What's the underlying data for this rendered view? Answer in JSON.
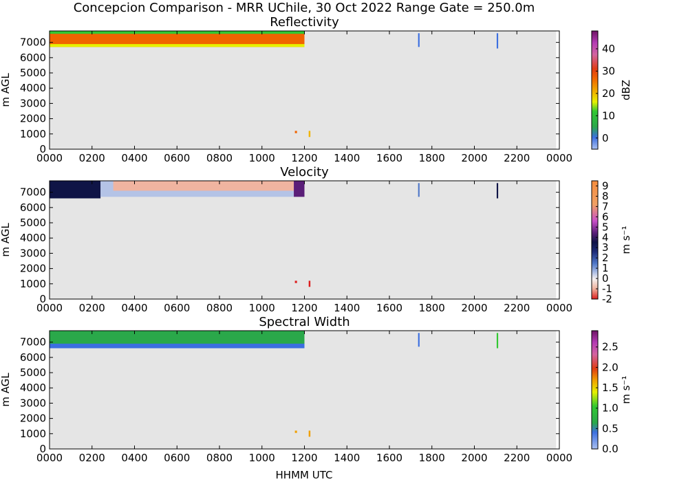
{
  "suptitle": "Concepcion Comparison - MRR UChile, 30 Oct 2022 Range Gate = 250.0m",
  "xlabel": "HHMM UTC",
  "chart_data": [
    {
      "type": "heatmap",
      "title": "Reflectivity",
      "ylabel": "m AGL",
      "xlim": [
        0,
        2400
      ],
      "ylim": [
        0,
        7750
      ],
      "xticks": [
        "0000",
        "0200",
        "0400",
        "0600",
        "0800",
        "1000",
        "1200",
        "1400",
        "1600",
        "1800",
        "2000",
        "2200",
        "0000"
      ],
      "yticks": [
        "0",
        "1000",
        "2000",
        "3000",
        "4000",
        "5000",
        "6000",
        "7000"
      ],
      "colorbar": {
        "label": "dBZ",
        "ticks": [
          "0",
          "10",
          "20",
          "30",
          "40"
        ],
        "range": [
          -5,
          48
        ]
      },
      "background": "#e5e5e5",
      "features": [
        {
          "desc": "main echo layer",
          "t_start": 0,
          "t_end": 1200,
          "z_bottom": 6700,
          "z_top": 7750,
          "core_value": 28,
          "edge_value": 12
        },
        {
          "desc": "small cell",
          "t_start": 1155,
          "t_end": 1165,
          "z_bottom": 1050,
          "z_top": 1200,
          "core_value": 28
        },
        {
          "desc": "small cell",
          "t_start": 1220,
          "t_end": 1228,
          "z_bottom": 800,
          "z_top": 1200,
          "core_value": 22
        },
        {
          "desc": "weak echo",
          "t_start": 1735,
          "t_end": 1742,
          "z_bottom": 6700,
          "z_top": 7600,
          "core_value": 2
        },
        {
          "desc": "weak echo",
          "t_start": 2105,
          "t_end": 2112,
          "z_bottom": 6600,
          "z_top": 7600,
          "core_value": 2
        }
      ]
    },
    {
      "type": "heatmap",
      "title": "Velocity",
      "ylabel": "m s^-1 | m AGL",
      "xlim": [
        0,
        2400
      ],
      "ylim": [
        0,
        7750
      ],
      "xticks": [
        "0000",
        "0200",
        "0400",
        "0600",
        "0800",
        "1000",
        "1200",
        "1400",
        "1600",
        "1800",
        "2000",
        "2200",
        "0000"
      ],
      "yticks": [
        "0",
        "1000",
        "2000",
        "3000",
        "4000",
        "5000",
        "6000",
        "7000"
      ],
      "colorbar": {
        "label": "m s^-1",
        "ticks": [
          "-2",
          "-1",
          "0",
          "1",
          "2",
          "3",
          "4",
          "5",
          "6",
          "7",
          "8",
          "9"
        ],
        "range": [
          -2,
          9.5
        ]
      },
      "background": "#e5e5e5",
      "features": [
        {
          "desc": "strong fall speeds",
          "t_start": 0,
          "t_end": 240,
          "z_bottom": 6600,
          "z_top": 7750,
          "core_value": 4
        },
        {
          "desc": "weak motion layer",
          "t_start": 240,
          "t_end": 1150,
          "z_bottom": 6700,
          "z_top": 7750,
          "core_value": 1
        },
        {
          "desc": "updraft top",
          "t_start": 300,
          "t_end": 1150,
          "z_bottom": 7100,
          "z_top": 7750,
          "core_value": -0.8
        },
        {
          "desc": "strong fall speeds",
          "t_start": 1150,
          "t_end": 1200,
          "z_bottom": 6700,
          "z_top": 7750,
          "core_value": 5
        },
        {
          "desc": "small cell",
          "t_start": 1155,
          "t_end": 1165,
          "z_bottom": 1050,
          "z_top": 1200,
          "core_value": -1.5
        },
        {
          "desc": "small cell",
          "t_start": 1220,
          "t_end": 1228,
          "z_bottom": 800,
          "z_top": 1200,
          "core_value": -1.5
        },
        {
          "desc": "weak echo",
          "t_start": 1735,
          "t_end": 1742,
          "z_bottom": 6700,
          "z_top": 7600,
          "core_value": 2
        },
        {
          "desc": "weak echo",
          "t_start": 2105,
          "t_end": 2112,
          "z_bottom": 6600,
          "z_top": 7600,
          "core_value": 3.5
        }
      ]
    },
    {
      "type": "heatmap",
      "title": "Spectral Width",
      "ylabel": "m s^-1 | m AGL",
      "xlim": [
        0,
        2400
      ],
      "ylim": [
        0,
        7750
      ],
      "xticks": [
        "0000",
        "0200",
        "0400",
        "0600",
        "0800",
        "1000",
        "1200",
        "1400",
        "1600",
        "1800",
        "2000",
        "2200",
        "0000"
      ],
      "yticks": [
        "0",
        "1000",
        "2000",
        "3000",
        "4000",
        "5000",
        "6000",
        "7000"
      ],
      "colorbar": {
        "label": "m s^-1",
        "ticks": [
          "0.0",
          "0.5",
          "1.0",
          "1.5",
          "2.0",
          "2.5"
        ],
        "range": [
          0,
          2.9
        ]
      },
      "background": "#e5e5e5",
      "features": [
        {
          "desc": "main layer",
          "t_start": 0,
          "t_end": 1200,
          "z_bottom": 6700,
          "z_top": 7750,
          "core_value": 0.9
        },
        {
          "desc": "narrow base",
          "t_start": 0,
          "t_end": 1200,
          "z_bottom": 6600,
          "z_top": 6900,
          "core_value": 0.4
        },
        {
          "desc": "small cell",
          "t_start": 1155,
          "t_end": 1165,
          "z_bottom": 1050,
          "z_top": 1200,
          "core_value": 1.9
        },
        {
          "desc": "small cell",
          "t_start": 1220,
          "t_end": 1228,
          "z_bottom": 800,
          "z_top": 1200,
          "core_value": 1.8
        },
        {
          "desc": "weak echo",
          "t_start": 1735,
          "t_end": 1742,
          "z_bottom": 6700,
          "z_top": 7600,
          "core_value": 0.4
        },
        {
          "desc": "weak echo",
          "t_start": 2105,
          "t_end": 2112,
          "z_bottom": 6600,
          "z_top": 7600,
          "core_value": 1.0
        }
      ]
    }
  ]
}
